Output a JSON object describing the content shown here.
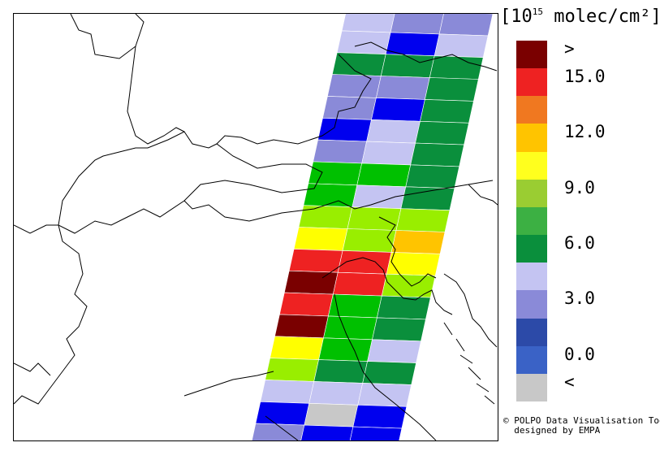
{
  "legend": {
    "units_prefix": "[10",
    "units_exp": "15",
    "units_suffix": " molec/cm²]",
    "bins": [
      {
        "color": "#7a0000",
        "label": ">"
      },
      {
        "color": "#ee2222",
        "label": "15.0"
      },
      {
        "color": "#f07820",
        "label": ""
      },
      {
        "color": "#ffc400",
        "label": "12.0"
      },
      {
        "color": "#ffff1e",
        "label": ""
      },
      {
        "color": "#9acd32",
        "label": "9.0"
      },
      {
        "color": "#3cb043",
        "label": ""
      },
      {
        "color": "#0a8f3c",
        "label": "6.0"
      },
      {
        "color": "#c4c4f2",
        "label": ""
      },
      {
        "color": "#8a8ad8",
        "label": "3.0"
      },
      {
        "color": "#2c4aa8",
        "label": ""
      },
      {
        "color": "#3a62c6",
        "label": "0.0"
      },
      {
        "color": "#c8c8c8",
        "label": "<"
      }
    ]
  },
  "credits": {
    "line1": "© POLPO Data Visualisation Tool",
    "line2": "  designed by EMPA"
  },
  "swath": {
    "colors": {
      "dr": "#7a0000",
      "r": "#ee2222",
      "o": "#ffc400",
      "y": "#ffff00",
      "lg": "#99ee00",
      "g": "#00c000",
      "dg": "#0a8f3c",
      "lav": "#c4c4f2",
      "pb": "#8a8ad8",
      "b": "#0000ee",
      "gr": "#c8c8c8",
      "w": "#ffffff"
    },
    "rows": [
      [
        "lav",
        "pb",
        "pb"
      ],
      [
        "lav",
        "b",
        "lav"
      ],
      [
        "dg",
        "dg",
        "dg"
      ],
      [
        "pb",
        "pb",
        "dg"
      ],
      [
        "pb",
        "b",
        "dg"
      ],
      [
        "b",
        "lav",
        "dg"
      ],
      [
        "pb",
        "lav",
        "dg"
      ],
      [
        "g",
        "g",
        "dg"
      ],
      [
        "g",
        "lav",
        "dg"
      ],
      [
        "lg",
        "lg",
        "lg"
      ],
      [
        "y",
        "lg",
        "o"
      ],
      [
        "r",
        "r",
        "y"
      ],
      [
        "dr",
        "r",
        "lg"
      ],
      [
        "r",
        "g",
        "dg"
      ],
      [
        "dr",
        "g",
        "dg"
      ],
      [
        "y",
        "g",
        "lav"
      ],
      [
        "lg",
        "dg",
        "dg"
      ],
      [
        "lav",
        "lav",
        "lav"
      ],
      [
        "b",
        "gr",
        "b"
      ],
      [
        "pb",
        "b",
        "b"
      ]
    ]
  }
}
